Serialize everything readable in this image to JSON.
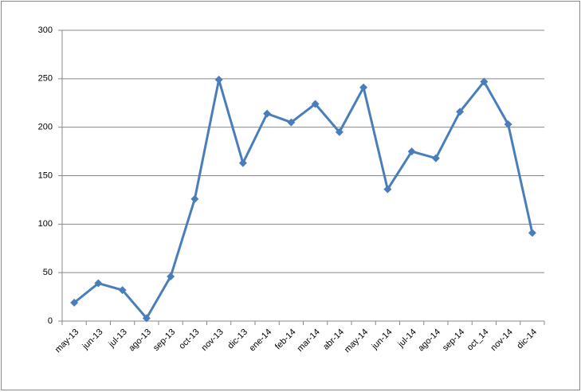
{
  "chart_data": {
    "type": "line",
    "categories": [
      "may-13",
      "jun-13",
      "jul-13",
      "ago-13",
      "sep-13",
      "oct-13",
      "nov-13",
      "dic-13",
      "ene-14",
      "feb-14",
      "mar-14",
      "abr-14",
      "may-14",
      "jun-14",
      "jul-14",
      "ago-14",
      "sep-14",
      "oct_14",
      "nov-14",
      "dic-14"
    ],
    "values": [
      19,
      39,
      32,
      3,
      46,
      126,
      249,
      163,
      214,
      205,
      224,
      195,
      241,
      136,
      175,
      168,
      216,
      247,
      203,
      91
    ],
    "color": "#4a7ebb",
    "ylim": [
      0,
      300
    ],
    "yticks": [
      0,
      50,
      100,
      150,
      200,
      250,
      300
    ],
    "grid": true
  }
}
